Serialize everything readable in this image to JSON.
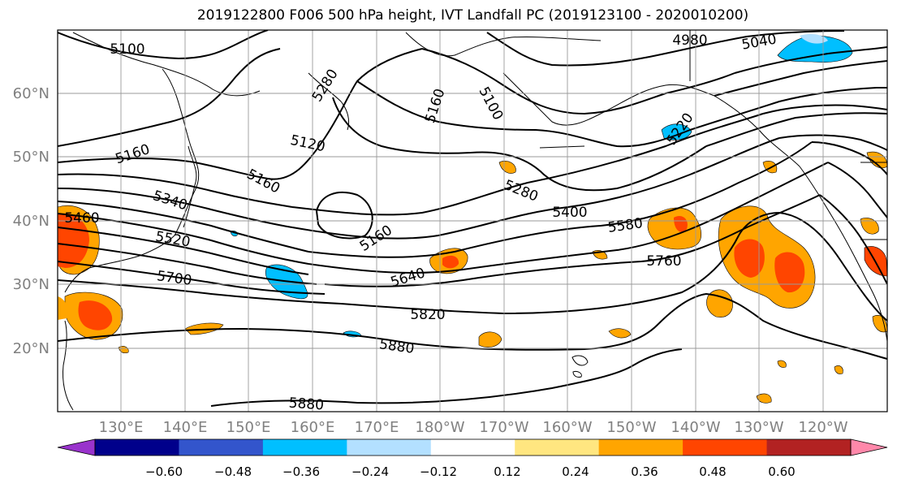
{
  "title": "2019122800 F006 500 hPa height, IVT Landfall PC (2019123100 - 2020010200)",
  "lat_labels": [
    "60°N",
    "50°N",
    "40°N",
    "30°N",
    "20°N"
  ],
  "lon_labels": [
    "130°E",
    "140°E",
    "150°E",
    "160°E",
    "170°E",
    "180°W",
    "170°W",
    "160°W",
    "150°W",
    "140°W",
    "130°W",
    "120°W"
  ],
  "colorbar": {
    "colors": [
      "#9933cc",
      "#00008b",
      "#3355cc",
      "#00bfff",
      "#b3e0ff",
      "#ffffff",
      "#ffe680",
      "#ffa500",
      "#ff4500",
      "#b22222",
      "#ff88aa"
    ],
    "tick_labels": [
      "−0.60",
      "−0.48",
      "−0.36",
      "−0.24",
      "−0.12",
      "0.12",
      "0.24",
      "0.36",
      "0.48",
      "0.60"
    ]
  },
  "contour_labels": [
    {
      "text": "5100"
    },
    {
      "text": "4980"
    },
    {
      "text": "5040"
    },
    {
      "text": "5160"
    },
    {
      "text": "5100"
    },
    {
      "text": "5160"
    },
    {
      "text": "5280"
    },
    {
      "text": "5120"
    },
    {
      "text": "5160"
    },
    {
      "text": "5220"
    },
    {
      "text": "5340"
    },
    {
      "text": "5460"
    },
    {
      "text": "5520"
    },
    {
      "text": "5700"
    },
    {
      "text": "5160"
    },
    {
      "text": "5280"
    },
    {
      "text": "5400"
    },
    {
      "text": "5580"
    },
    {
      "text": "5640"
    },
    {
      "text": "5760"
    },
    {
      "text": "5820"
    },
    {
      "text": "5880"
    },
    {
      "text": "5880"
    }
  ]
}
